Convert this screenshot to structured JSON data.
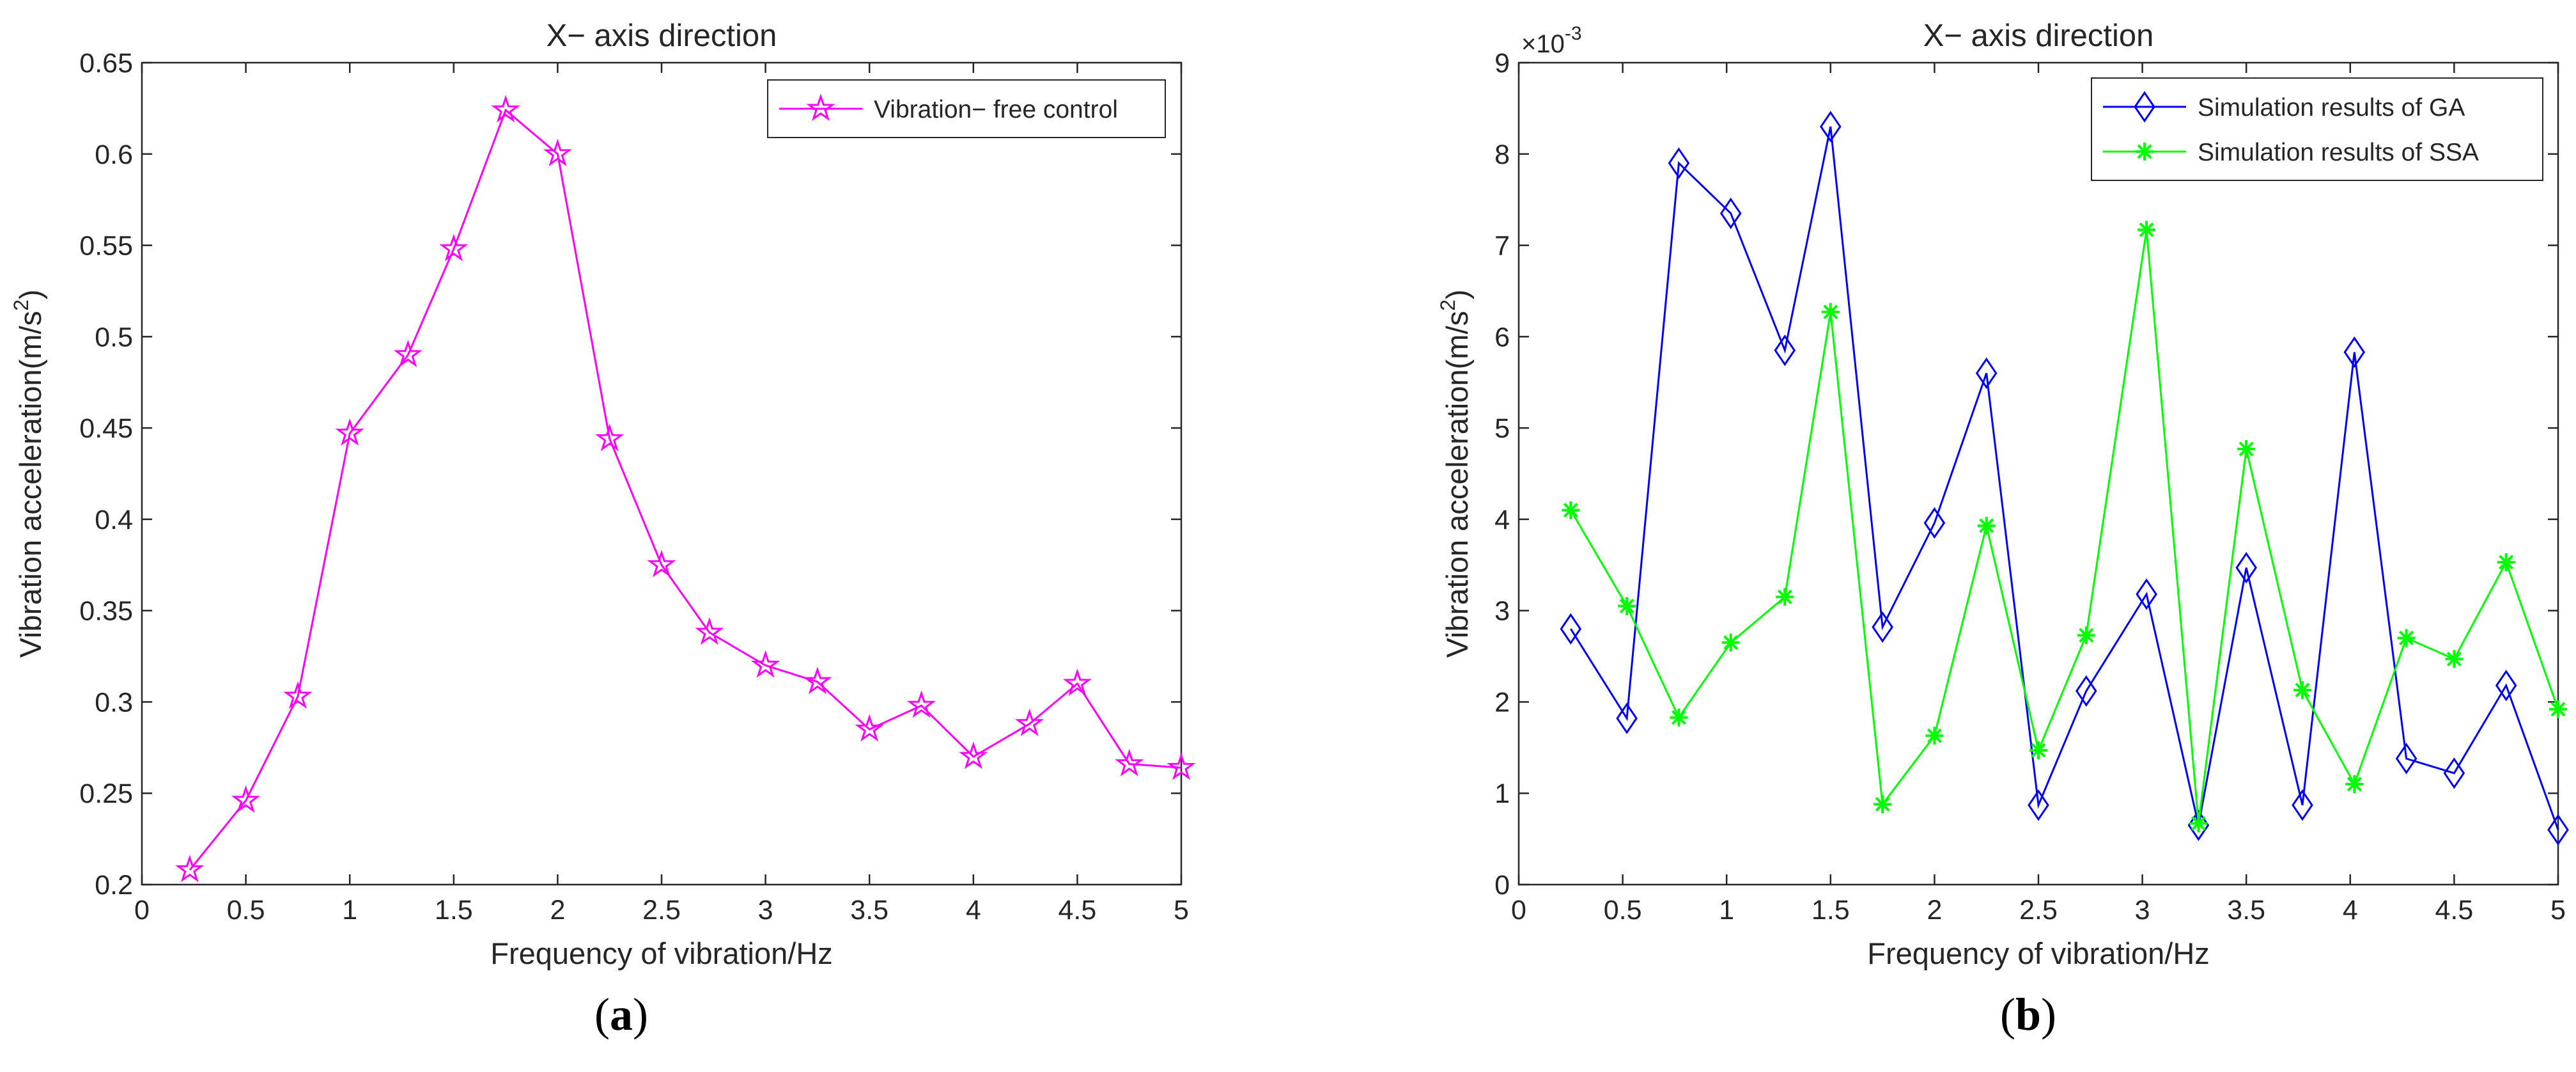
{
  "chart_data": [
    {
      "panel": "(a)",
      "panel_letter": "a",
      "type": "line",
      "title": "X− axis direction",
      "xlabel": "Frequency of vibration/Hz",
      "ylabel": "Vibration acceleration(m/s",
      "ylabel_sup": "2",
      "ylabel_close": ")",
      "xlim": [
        0,
        5
      ],
      "ylim": [
        0.2,
        0.65
      ],
      "xticks": [
        "0",
        "0.5",
        "1",
        "1.5",
        "2",
        "2.5",
        "3",
        "3.5",
        "4",
        "4.5",
        "5"
      ],
      "yticks": [
        "0.2",
        "0.25",
        "0.3",
        "0.35",
        "0.4",
        "0.45",
        "0.5",
        "0.55",
        "0.6",
        "0.65"
      ],
      "legend_position": "top-right",
      "series": [
        {
          "name": "Vibration− free control",
          "color": "#ff00ff",
          "marker": "pentagram",
          "x": [
            0.23,
            0.5,
            0.75,
            1.0,
            1.28,
            1.5,
            1.75,
            2.0,
            2.25,
            2.5,
            2.73,
            3.0,
            3.25,
            3.5,
            3.75,
            4.0,
            4.27,
            4.5,
            4.75,
            5.0
          ],
          "y": [
            0.208,
            0.246,
            0.303,
            0.447,
            0.49,
            0.548,
            0.624,
            0.6,
            0.444,
            0.375,
            0.338,
            0.32,
            0.311,
            0.285,
            0.298,
            0.27,
            0.288,
            0.31,
            0.266,
            0.264
          ]
        }
      ]
    },
    {
      "panel": "(b)",
      "panel_letter": "b",
      "type": "line",
      "title": "X− axis direction",
      "xlabel": "Frequency of vibration/Hz",
      "ylabel": "Vibration acceleration(m/s",
      "ylabel_sup": "2",
      "ylabel_close": ")",
      "y_multiplier_base": "×10",
      "y_multiplier_exp": "-3",
      "xlim": [
        0,
        5
      ],
      "ylim": [
        0,
        9
      ],
      "xticks": [
        "0",
        "0.5",
        "1",
        "1.5",
        "2",
        "2.5",
        "3",
        "3.5",
        "4",
        "4.5",
        "5"
      ],
      "yticks": [
        "0",
        "1",
        "2",
        "3",
        "4",
        "5",
        "6",
        "7",
        "8",
        "9"
      ],
      "legend_position": "top-right",
      "series": [
        {
          "name": "Simulation results of GA",
          "color": "#0000ff",
          "marker": "diamond",
          "x": [
            0.25,
            0.52,
            0.77,
            1.02,
            1.28,
            1.5,
            1.75,
            2.0,
            2.25,
            2.5,
            2.73,
            3.02,
            3.27,
            3.5,
            3.77,
            4.02,
            4.27,
            4.5,
            4.75,
            5.0
          ],
          "y": [
            2.8,
            1.82,
            7.9,
            7.35,
            5.85,
            8.3,
            2.82,
            3.96,
            5.6,
            0.87,
            2.12,
            3.18,
            0.65,
            3.47,
            0.87,
            5.83,
            1.38,
            1.22,
            2.18,
            0.6
          ]
        },
        {
          "name": "Simulation results of SSA",
          "color": "#00ff00",
          "marker": "asterisk",
          "x": [
            0.25,
            0.52,
            0.77,
            1.02,
            1.28,
            1.5,
            1.75,
            2.0,
            2.25,
            2.5,
            2.73,
            3.02,
            3.27,
            3.5,
            3.77,
            4.02,
            4.27,
            4.5,
            4.75,
            5.0
          ],
          "y": [
            4.1,
            3.05,
            1.83,
            2.65,
            3.15,
            6.27,
            0.88,
            1.63,
            3.93,
            1.47,
            2.73,
            7.17,
            0.67,
            4.77,
            2.13,
            1.1,
            2.7,
            2.47,
            3.53,
            1.92
          ]
        }
      ]
    }
  ]
}
